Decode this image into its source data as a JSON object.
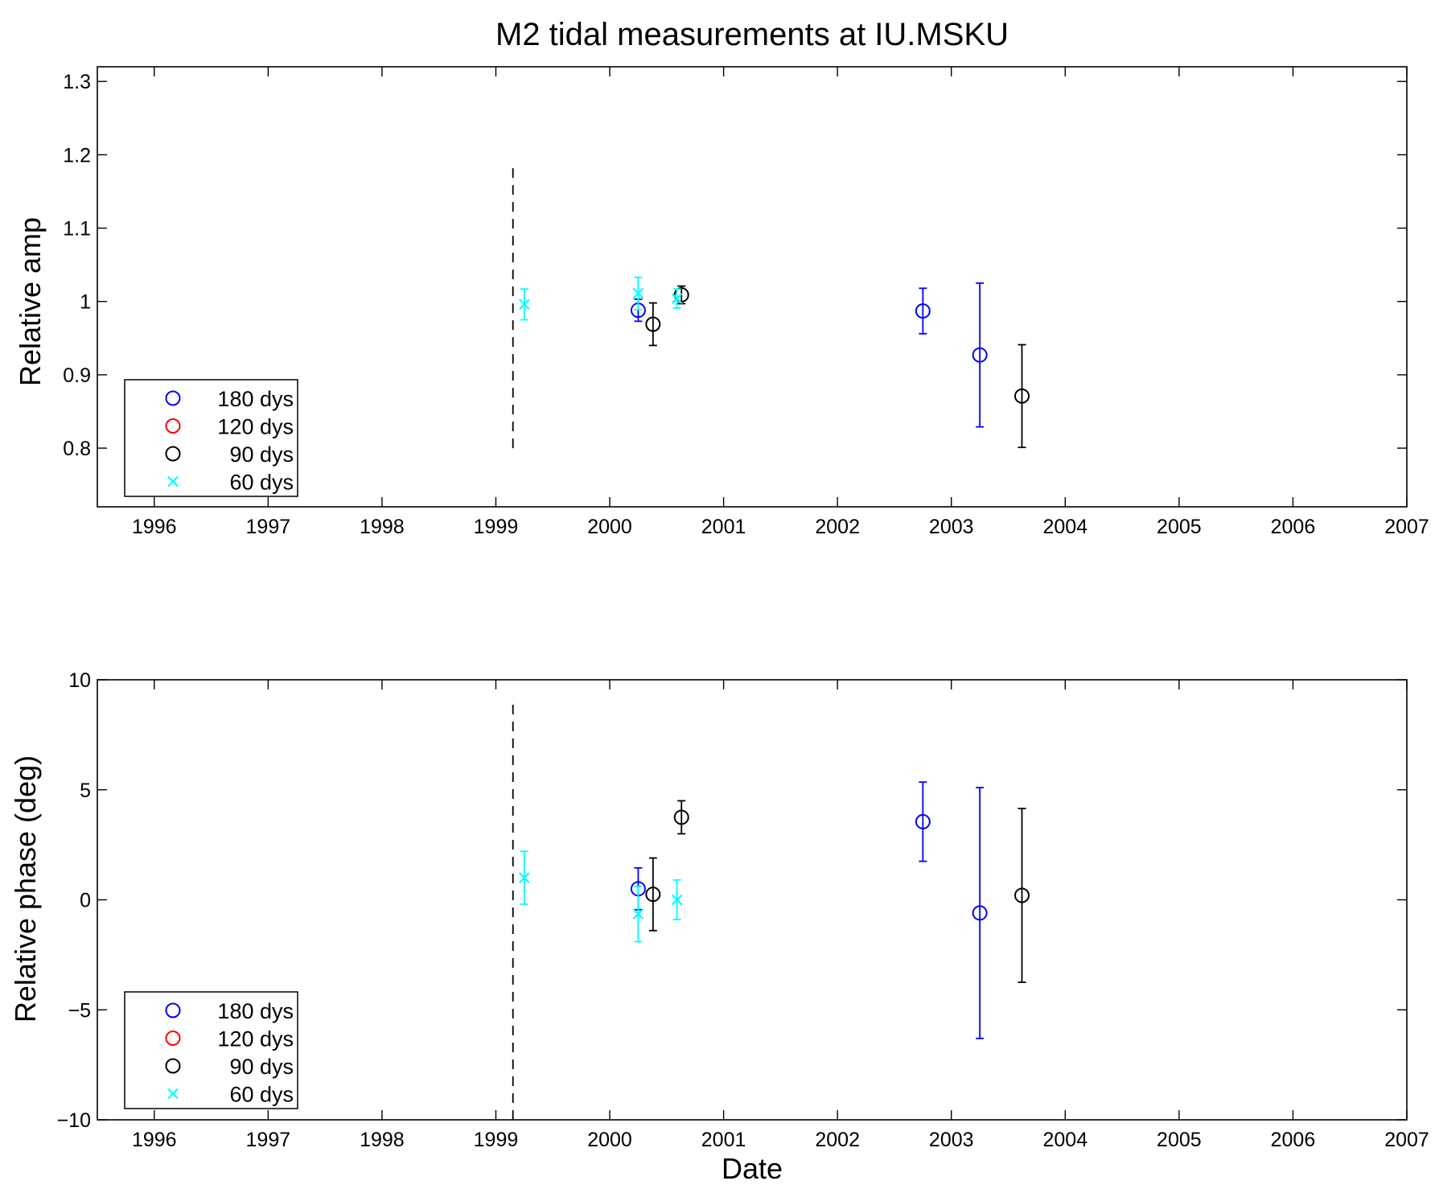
{
  "figure_title": "M2 tidal measurements at IU.MSKU",
  "legend": [
    {
      "label": "180 dys",
      "marker": "circle",
      "color": "#0000ff"
    },
    {
      "label": "120 dys",
      "marker": "circle",
      "color": "#ff0000"
    },
    {
      "label": "90 dys",
      "marker": "circle",
      "color": "#000000"
    },
    {
      "label": "60 dys",
      "marker": "x",
      "color": "#00ffff"
    }
  ],
  "chart_data": [
    {
      "type": "scatter",
      "title": "M2 tidal measurements at IU.MSKU",
      "xlabel": "",
      "ylabel": "Relative amp",
      "xlim": [
        1995.5,
        2007
      ],
      "ylim": [
        0.72,
        1.32
      ],
      "xticks": [
        1996,
        1997,
        1998,
        1999,
        2000,
        2001,
        2002,
        2003,
        2004,
        2005,
        2006,
        2007
      ],
      "yticks": [
        0.8,
        0.9,
        1,
        1.1,
        1.2,
        1.3
      ],
      "ytick_labels": [
        "0.8",
        "0.9",
        "1",
        "1.1",
        "1.2",
        "1.3"
      ],
      "grid": false,
      "legend_position": "bottom-left",
      "vline": {
        "x": 1999.15,
        "y": [
          0.8,
          1.19
        ],
        "style": "dashed"
      },
      "series": [
        {
          "name": "180 dys",
          "marker": "circle",
          "color": "#0000ff",
          "points": [
            {
              "x": 2000.25,
              "y": 0.988,
              "err": 0.015
            },
            {
              "x": 2002.75,
              "y": 0.987,
              "err": 0.031
            },
            {
              "x": 2003.25,
              "y": 0.927,
              "err": 0.098
            }
          ]
        },
        {
          "name": "120 dys",
          "marker": "circle",
          "color": "#ff0000",
          "points": []
        },
        {
          "name": "90 dys",
          "marker": "circle",
          "color": "#000000",
          "points": [
            {
              "x": 2000.38,
              "y": 0.969,
              "err": 0.029
            },
            {
              "x": 2000.63,
              "y": 1.009,
              "err": 0.012
            },
            {
              "x": 2003.62,
              "y": 0.871,
              "err": 0.07
            }
          ]
        },
        {
          "name": "60 dys",
          "marker": "x",
          "color": "#00ffff",
          "points": [
            {
              "x": 1999.25,
              "y": 0.996,
              "err": 0.021
            },
            {
              "x": 2000.25,
              "y": 1.011,
              "err": 0.022
            },
            {
              "x": 2000.59,
              "y": 1.004,
              "err": 0.013
            }
          ]
        }
      ]
    },
    {
      "type": "scatter",
      "title": "",
      "xlabel": "Date",
      "ylabel": "Relative phase (deg)",
      "xlim": [
        1995.5,
        2007
      ],
      "ylim": [
        -10,
        10
      ],
      "xticks": [
        1996,
        1997,
        1998,
        1999,
        2000,
        2001,
        2002,
        2003,
        2004,
        2005,
        2006,
        2007
      ],
      "yticks": [
        -10,
        -5,
        0,
        5,
        10
      ],
      "ytick_labels": [
        "−10",
        "−5",
        "0",
        "5",
        "10"
      ],
      "grid": false,
      "legend_position": "bottom-left",
      "vline": {
        "x": 1999.15,
        "y": [
          -10,
          9.2
        ],
        "style": "dashed"
      },
      "series": [
        {
          "name": "180 dys",
          "marker": "circle",
          "color": "#0000ff",
          "points": [
            {
              "x": 2000.25,
              "y": 0.5,
              "err": 0.95
            },
            {
              "x": 2002.75,
              "y": 3.55,
              "err": 1.8
            },
            {
              "x": 2003.25,
              "y": -0.6,
              "err": 5.7
            }
          ]
        },
        {
          "name": "120 dys",
          "marker": "circle",
          "color": "#ff0000",
          "points": []
        },
        {
          "name": "90 dys",
          "marker": "circle",
          "color": "#000000",
          "points": [
            {
              "x": 2000.38,
              "y": 0.25,
              "err": 1.65
            },
            {
              "x": 2000.63,
              "y": 3.75,
              "err": 0.75
            },
            {
              "x": 2003.62,
              "y": 0.2,
              "err": 3.95
            }
          ]
        },
        {
          "name": "60 dys",
          "marker": "x",
          "color": "#00ffff",
          "points": [
            {
              "x": 1999.25,
              "y": 1.0,
              "err": 1.2
            },
            {
              "x": 2000.25,
              "y": -0.65,
              "err": 1.25
            },
            {
              "x": 2000.59,
              "y": 0.0,
              "err": 0.9
            }
          ]
        }
      ]
    }
  ]
}
